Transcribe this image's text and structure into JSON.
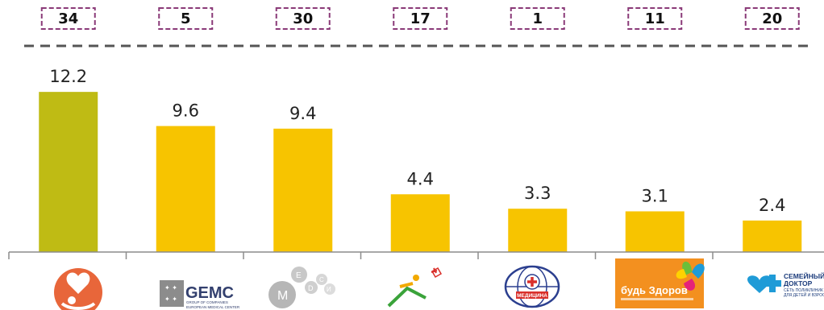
{
  "chart_data": {
    "type": "bar",
    "categories": [
      "Мать и дитя",
      "GEMC",
      "Медси",
      "Логотип 4",
      "Медицина",
      "Будь Здоров",
      "Семейный доктор"
    ],
    "values": [
      12.2,
      9.6,
      9.4,
      4.4,
      3.3,
      3.1,
      2.4
    ],
    "value_labels": [
      "12.2",
      "9.6",
      "9.4",
      "4.4",
      "3.3",
      "3.1",
      "2.4"
    ],
    "ranks": [
      "34",
      "5",
      "30",
      "17",
      "1",
      "11",
      "20"
    ],
    "ylim": [
      0,
      13
    ],
    "title": "",
    "xlabel": "",
    "ylabel": "",
    "grid": false,
    "colors": {
      "highlight_bar": "#bfbb14",
      "bar": "#f7c400",
      "rank_border": "#8a3a78",
      "dashed_line": "#555555",
      "axis": "#8c8c8c"
    }
  },
  "logos": {
    "gemc_name": "GEMC",
    "gemc_sub1": "GROUP OF COMPANIES",
    "gemc_sub2": "EUROPEAN MEDICAL CENTER",
    "medsi_letters": [
      "M",
      "E",
      "D",
      "C",
      "И"
    ],
    "medicina_text": "МЕДИЦИНА",
    "budz_text": "будь Здоров",
    "semdoc_line1": "СЕМЕЙНЫЙ",
    "semdoc_line2": "ДОКТОР",
    "semdoc_line3": "СЕТЬ ПОЛИКЛИНИК",
    "semdoc_line4": "ДЛЯ ДЕТЕЙ И ВЗРОСЛЫХ"
  }
}
